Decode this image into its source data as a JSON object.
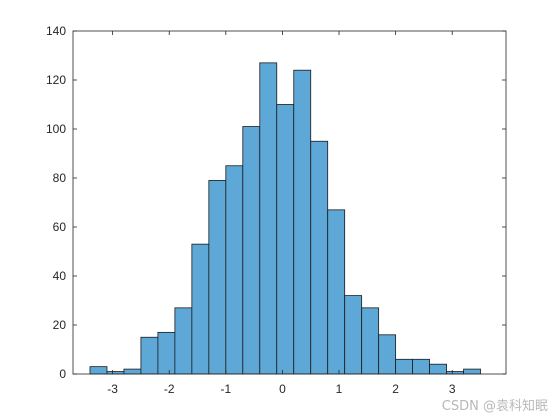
{
  "chart_data": {
    "type": "bar",
    "title": "",
    "xlabel": "",
    "ylabel": "",
    "bin_width": 0.3,
    "bins": [
      {
        "start": -3.4,
        "end": -3.1,
        "count": 3
      },
      {
        "start": -3.1,
        "end": -2.8,
        "count": 1
      },
      {
        "start": -2.8,
        "end": -2.5,
        "count": 2
      },
      {
        "start": -2.5,
        "end": -2.2,
        "count": 15
      },
      {
        "start": -2.2,
        "end": -1.9,
        "count": 17
      },
      {
        "start": -1.9,
        "end": -1.6,
        "count": 27
      },
      {
        "start": -1.6,
        "end": -1.3,
        "count": 53
      },
      {
        "start": -1.3,
        "end": -1.0,
        "count": 79
      },
      {
        "start": -1.0,
        "end": -0.7,
        "count": 85
      },
      {
        "start": -0.7,
        "end": -0.4,
        "count": 101
      },
      {
        "start": -0.4,
        "end": -0.1,
        "count": 127
      },
      {
        "start": -0.1,
        "end": 0.2,
        "count": 110
      },
      {
        "start": 0.2,
        "end": 0.5,
        "count": 124
      },
      {
        "start": 0.5,
        "end": 0.8,
        "count": 95
      },
      {
        "start": 0.8,
        "end": 1.1,
        "count": 67
      },
      {
        "start": 1.1,
        "end": 1.4,
        "count": 32
      },
      {
        "start": 1.4,
        "end": 1.7,
        "count": 27
      },
      {
        "start": 1.7,
        "end": 2.0,
        "count": 16
      },
      {
        "start": 2.0,
        "end": 2.3,
        "count": 6
      },
      {
        "start": 2.3,
        "end": 2.6,
        "count": 6
      },
      {
        "start": 2.6,
        "end": 2.9,
        "count": 4
      },
      {
        "start": 2.9,
        "end": 3.2,
        "count": 1
      },
      {
        "start": 3.2,
        "end": 3.5,
        "count": 2
      }
    ],
    "xlim": [
      -3.7,
      3.95
    ],
    "ylim": [
      0,
      140
    ],
    "xticks": [
      -3,
      -2,
      -1,
      0,
      1,
      2,
      3
    ],
    "yticks": [
      0,
      20,
      40,
      60,
      80,
      100,
      120,
      140
    ],
    "grid": false,
    "legend": "none",
    "colors": {
      "bar_fill": "#5ea8d8",
      "bar_edge": "#1a1a1a",
      "axis": "#262626"
    }
  },
  "watermark": "CSDN @袁科知眠"
}
